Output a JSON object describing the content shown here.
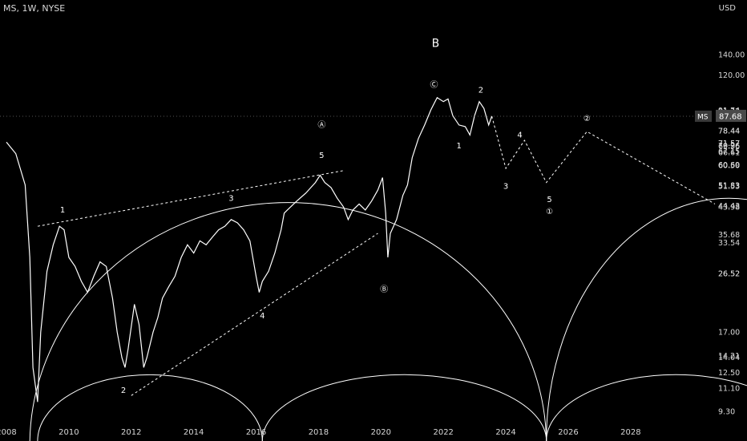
{
  "header": {
    "symbol_line": "MS, 1W, NYSE",
    "currency": "USD"
  },
  "price_badge": {
    "symbol": "MS",
    "price": "87.68"
  },
  "colors": {
    "background": "#000000",
    "price": "#ffffff",
    "projection": "#ffffff",
    "axis_text": "#d8d8d8",
    "badge": "#3a3a3a"
  },
  "chart_data": {
    "type": "line",
    "title": "",
    "xlabel": "",
    "ylabel": "",
    "x_ticks": [
      "2008",
      "2010",
      "2012",
      "2014",
      "2016",
      "2018",
      "2020",
      "2022",
      "2024",
      "2026",
      "2028"
    ],
    "x_range": [
      2008,
      2030.7
    ],
    "y_scale": "log",
    "ylim": [
      8.5,
      190
    ],
    "y_ticks": [
      "140.00",
      "120.00",
      "91.74",
      "91.22",
      "90.44",
      "87.68",
      "78.44",
      "78.44",
      "71.57",
      "71.57",
      "70.26",
      "69.96",
      "67.15",
      "66.61",
      "60.69",
      "60.50",
      "60.50",
      "51.83",
      "51.53",
      "44.43",
      "43.98",
      "35.68",
      "33.54",
      "26.52",
      "26.52",
      "17.00",
      "14.21",
      "14.04",
      "12.50",
      "11.10",
      "9.30"
    ],
    "grid": false,
    "legend": "none",
    "series": [
      {
        "values": [
          [
            2008.0,
            72
          ],
          [
            2008.3,
            66
          ],
          [
            2008.6,
            52
          ],
          [
            2008.75,
            30
          ],
          [
            2008.85,
            13
          ],
          [
            2009.0,
            10
          ],
          [
            2009.1,
            17
          ],
          [
            2009.3,
            27
          ],
          [
            2009.5,
            33
          ],
          [
            2009.7,
            38
          ],
          [
            2009.85,
            37
          ],
          [
            2010.0,
            30
          ],
          [
            2010.2,
            28
          ],
          [
            2010.4,
            25
          ],
          [
            2010.6,
            23
          ],
          [
            2010.8,
            26
          ],
          [
            2011.0,
            29
          ],
          [
            2011.2,
            28
          ],
          [
            2011.4,
            22
          ],
          [
            2011.55,
            17
          ],
          [
            2011.7,
            14
          ],
          [
            2011.8,
            13
          ],
          [
            2011.9,
            15
          ],
          [
            2012.1,
            21
          ],
          [
            2012.25,
            18
          ],
          [
            2012.4,
            13
          ],
          [
            2012.5,
            14
          ],
          [
            2012.7,
            17
          ],
          [
            2012.85,
            19
          ],
          [
            2013.0,
            22
          ],
          [
            2013.2,
            24
          ],
          [
            2013.4,
            26
          ],
          [
            2013.6,
            30
          ],
          [
            2013.8,
            33
          ],
          [
            2014.0,
            31
          ],
          [
            2014.2,
            34
          ],
          [
            2014.4,
            33
          ],
          [
            2014.6,
            35
          ],
          [
            2014.8,
            37
          ],
          [
            2015.0,
            38
          ],
          [
            2015.2,
            40
          ],
          [
            2015.4,
            39
          ],
          [
            2015.6,
            37
          ],
          [
            2015.8,
            34
          ],
          [
            2016.0,
            26
          ],
          [
            2016.1,
            23
          ],
          [
            2016.2,
            25
          ],
          [
            2016.4,
            27
          ],
          [
            2016.6,
            31
          ],
          [
            2016.8,
            37
          ],
          [
            2016.9,
            42
          ],
          [
            2017.0,
            43
          ],
          [
            2017.3,
            46
          ],
          [
            2017.6,
            49
          ],
          [
            2017.9,
            53
          ],
          [
            2018.05,
            56
          ],
          [
            2018.2,
            53
          ],
          [
            2018.4,
            51
          ],
          [
            2018.6,
            47
          ],
          [
            2018.8,
            44
          ],
          [
            2018.95,
            40
          ],
          [
            2019.1,
            43
          ],
          [
            2019.3,
            45
          ],
          [
            2019.5,
            43
          ],
          [
            2019.7,
            46
          ],
          [
            2019.9,
            50
          ],
          [
            2020.05,
            55
          ],
          [
            2020.15,
            42
          ],
          [
            2020.22,
            30
          ],
          [
            2020.3,
            36
          ],
          [
            2020.5,
            40
          ],
          [
            2020.7,
            48
          ],
          [
            2020.85,
            52
          ],
          [
            2021.0,
            64
          ],
          [
            2021.2,
            74
          ],
          [
            2021.4,
            82
          ],
          [
            2021.6,
            92
          ],
          [
            2021.8,
            101
          ],
          [
            2022.0,
            98
          ],
          [
            2022.15,
            100
          ],
          [
            2022.3,
            88
          ],
          [
            2022.5,
            82
          ],
          [
            2022.7,
            81
          ],
          [
            2022.85,
            76
          ],
          [
            2023.0,
            88
          ],
          [
            2023.15,
            98
          ],
          [
            2023.3,
            93
          ],
          [
            2023.45,
            82
          ],
          [
            2023.55,
            87.68
          ]
        ]
      }
    ],
    "projection": [
      [
        2023.55,
        87.68
      ],
      [
        2024.0,
        59
      ],
      [
        2024.6,
        73
      ],
      [
        2025.3,
        53
      ],
      [
        2026.6,
        78
      ],
      [
        2030.7,
        45
      ]
    ],
    "trendlines": [
      {
        "from": [
          2009.0,
          38
        ],
        "to": [
          2018.8,
          58
        ]
      },
      {
        "from": [
          2012.0,
          10.5
        ],
        "to": [
          2019.9,
          36
        ]
      }
    ],
    "wave_labels": [
      {
        "text": "1",
        "x": 2009.8,
        "y": 43
      },
      {
        "text": "2",
        "x": 2011.75,
        "y": 10.9
      },
      {
        "text": "3",
        "x": 2015.2,
        "y": 47
      },
      {
        "text": "4",
        "x": 2016.2,
        "y": 19.2
      },
      {
        "text": "5",
        "x": 2018.1,
        "y": 65
      },
      {
        "text": "Ⓐ",
        "x": 2018.1,
        "y": 82
      },
      {
        "text": "Ⓑ",
        "x": 2020.1,
        "y": 23.5
      },
      {
        "text": "B",
        "x": 2021.75,
        "y": 152
      },
      {
        "text": "Ⓒ",
        "x": 2021.7,
        "y": 111
      },
      {
        "text": "1",
        "x": 2022.5,
        "y": 70
      },
      {
        "text": "2",
        "x": 2023.2,
        "y": 107
      },
      {
        "text": "3",
        "x": 2024.0,
        "y": 51.5
      },
      {
        "text": "4",
        "x": 2024.45,
        "y": 76
      },
      {
        "text": "5",
        "x": 2025.4,
        "y": 46.5
      },
      {
        "text": "①",
        "x": 2025.4,
        "y": 42.5
      },
      {
        "text": "②",
        "x": 2026.6,
        "y": 86
      }
    ],
    "cycle_arcs": [
      {
        "from": 2008.75,
        "to": 2025.3,
        "peak": 47
      },
      {
        "from": 2009.0,
        "to": 2016.2,
        "peak": 12.3
      },
      {
        "from": 2016.2,
        "to": 2025.3,
        "peak": 12.3
      },
      {
        "from": 2025.3,
        "to": 2037.0,
        "peak": 47
      },
      {
        "from": 2025.3,
        "to": 2033.6,
        "peak": 12.3
      }
    ]
  }
}
